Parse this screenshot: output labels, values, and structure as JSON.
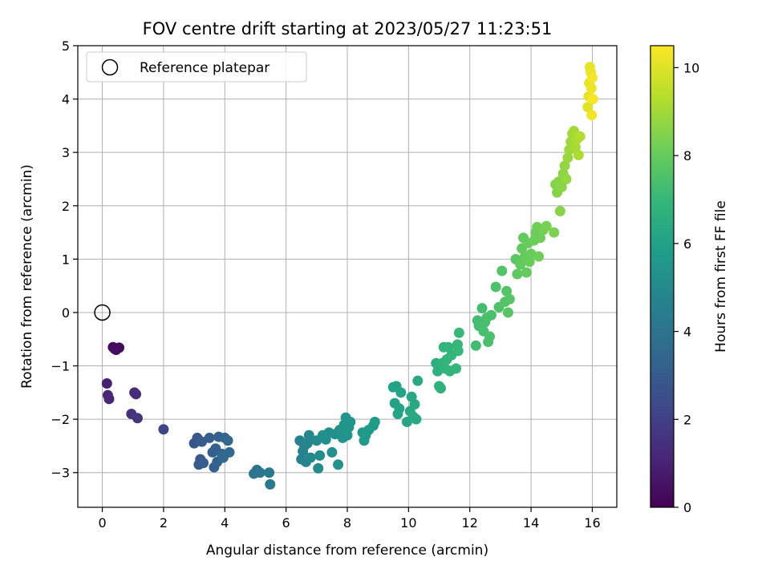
{
  "chart_data": {
    "type": "scatter",
    "title": "FOV centre drift starting at 2023/05/27 11:23:51",
    "xlabel": "Angular distance from reference (arcmin)",
    "ylabel": "Rotation from reference (arcmin)",
    "xlim": [
      -0.8,
      16.8
    ],
    "ylim": [
      -3.65,
      5.0
    ],
    "xticks": [
      0,
      2,
      4,
      6,
      8,
      10,
      12,
      14,
      16
    ],
    "yticks": [
      -3,
      -2,
      -1,
      0,
      1,
      2,
      3,
      4,
      5
    ],
    "grid": true,
    "legend": {
      "placement": "top-left",
      "entries": [
        "Reference platepar"
      ]
    },
    "reference_point": {
      "name": "Reference platepar",
      "x": 0,
      "y": 0
    },
    "colorbar": {
      "label": "Hours from first FF file",
      "colormap": "viridis",
      "min": 0,
      "max": 10.5,
      "ticks": [
        0,
        2,
        4,
        6,
        8,
        10
      ]
    },
    "points": [
      {
        "x": 0.35,
        "y": -0.65,
        "c": 0.2
      },
      {
        "x": 0.45,
        "y": -0.7,
        "c": 0.25
      },
      {
        "x": 0.55,
        "y": -0.66,
        "c": 0.3
      },
      {
        "x": 0.4,
        "y": -0.68,
        "c": 0.35
      },
      {
        "x": 0.15,
        "y": -1.33,
        "c": 1.0
      },
      {
        "x": 0.18,
        "y": -1.55,
        "c": 1.1
      },
      {
        "x": 0.22,
        "y": -1.62,
        "c": 1.15
      },
      {
        "x": 1.05,
        "y": -1.5,
        "c": 1.3
      },
      {
        "x": 1.1,
        "y": -1.53,
        "c": 1.35
      },
      {
        "x": 0.95,
        "y": -1.9,
        "c": 1.5
      },
      {
        "x": 1.15,
        "y": -1.98,
        "c": 1.6
      },
      {
        "x": 2.0,
        "y": -2.19,
        "c": 2.2
      },
      {
        "x": 3.0,
        "y": -2.45,
        "c": 2.8
      },
      {
        "x": 3.1,
        "y": -2.35,
        "c": 2.85
      },
      {
        "x": 3.2,
        "y": -2.75,
        "c": 2.9
      },
      {
        "x": 3.15,
        "y": -2.85,
        "c": 2.95
      },
      {
        "x": 3.3,
        "y": -2.82,
        "c": 3.0
      },
      {
        "x": 3.25,
        "y": -2.42,
        "c": 3.0
      },
      {
        "x": 3.5,
        "y": -2.35,
        "c": 3.1
      },
      {
        "x": 3.6,
        "y": -2.62,
        "c": 3.15
      },
      {
        "x": 3.65,
        "y": -2.9,
        "c": 3.2
      },
      {
        "x": 3.75,
        "y": -2.8,
        "c": 3.25
      },
      {
        "x": 3.8,
        "y": -2.33,
        "c": 3.3
      },
      {
        "x": 3.9,
        "y": -2.65,
        "c": 3.35
      },
      {
        "x": 4.0,
        "y": -2.35,
        "c": 3.4
      },
      {
        "x": 4.1,
        "y": -2.4,
        "c": 3.45
      },
      {
        "x": 4.15,
        "y": -2.62,
        "c": 3.5
      },
      {
        "x": 3.95,
        "y": -2.72,
        "c": 3.5
      },
      {
        "x": 3.7,
        "y": -2.55,
        "c": 3.3
      },
      {
        "x": 4.95,
        "y": -3.02,
        "c": 4.0
      },
      {
        "x": 5.05,
        "y": -2.95,
        "c": 4.05
      },
      {
        "x": 5.15,
        "y": -3.0,
        "c": 4.1
      },
      {
        "x": 5.45,
        "y": -3.0,
        "c": 4.2
      },
      {
        "x": 5.48,
        "y": -3.22,
        "c": 4.25
      },
      {
        "x": 6.45,
        "y": -2.4,
        "c": 4.6
      },
      {
        "x": 6.5,
        "y": -2.75,
        "c": 4.65
      },
      {
        "x": 6.55,
        "y": -2.6,
        "c": 4.7
      },
      {
        "x": 6.6,
        "y": -2.5,
        "c": 4.7
      },
      {
        "x": 6.65,
        "y": -2.8,
        "c": 4.75
      },
      {
        "x": 6.7,
        "y": -2.45,
        "c": 4.8
      },
      {
        "x": 6.75,
        "y": -2.3,
        "c": 4.85
      },
      {
        "x": 6.8,
        "y": -2.72,
        "c": 4.9
      },
      {
        "x": 7.0,
        "y": -2.4,
        "c": 5.0
      },
      {
        "x": 7.05,
        "y": -2.92,
        "c": 5.05
      },
      {
        "x": 7.1,
        "y": -2.68,
        "c": 5.1
      },
      {
        "x": 7.2,
        "y": -2.3,
        "c": 5.15
      },
      {
        "x": 7.3,
        "y": -2.38,
        "c": 5.2
      },
      {
        "x": 7.4,
        "y": -2.25,
        "c": 5.2
      },
      {
        "x": 7.5,
        "y": -2.62,
        "c": 5.25
      },
      {
        "x": 7.6,
        "y": -2.28,
        "c": 5.3
      },
      {
        "x": 7.7,
        "y": -2.85,
        "c": 5.35
      },
      {
        "x": 7.75,
        "y": -2.2,
        "c": 5.35
      },
      {
        "x": 7.85,
        "y": -2.35,
        "c": 5.4
      },
      {
        "x": 7.9,
        "y": -2.1,
        "c": 5.4
      },
      {
        "x": 7.95,
        "y": -1.97,
        "c": 5.45
      },
      {
        "x": 8.0,
        "y": -2.3,
        "c": 5.45
      },
      {
        "x": 8.05,
        "y": -2.15,
        "c": 5.5
      },
      {
        "x": 8.1,
        "y": -2.05,
        "c": 5.5
      },
      {
        "x": 8.5,
        "y": -2.25,
        "c": 5.6
      },
      {
        "x": 8.55,
        "y": -2.4,
        "c": 5.65
      },
      {
        "x": 8.6,
        "y": -2.3,
        "c": 5.7
      },
      {
        "x": 8.7,
        "y": -2.2,
        "c": 5.7
      },
      {
        "x": 8.85,
        "y": -2.12,
        "c": 5.8
      },
      {
        "x": 8.9,
        "y": -2.05,
        "c": 5.8
      },
      {
        "x": 9.5,
        "y": -1.4,
        "c": 6.0
      },
      {
        "x": 9.55,
        "y": -1.7,
        "c": 6.05
      },
      {
        "x": 9.6,
        "y": -1.38,
        "c": 6.05
      },
      {
        "x": 9.65,
        "y": -1.9,
        "c": 6.1
      },
      {
        "x": 9.7,
        "y": -1.8,
        "c": 6.1
      },
      {
        "x": 9.75,
        "y": -1.5,
        "c": 6.15
      },
      {
        "x": 9.95,
        "y": -2.05,
        "c": 6.2
      },
      {
        "x": 10.05,
        "y": -1.85,
        "c": 6.25
      },
      {
        "x": 10.1,
        "y": -1.58,
        "c": 6.25
      },
      {
        "x": 10.15,
        "y": -1.95,
        "c": 6.3
      },
      {
        "x": 10.25,
        "y": -2.0,
        "c": 6.3
      },
      {
        "x": 10.3,
        "y": -1.28,
        "c": 6.35
      },
      {
        "x": 10.2,
        "y": -1.72,
        "c": 6.3
      },
      {
        "x": 10.9,
        "y": -0.95,
        "c": 6.6
      },
      {
        "x": 10.95,
        "y": -1.1,
        "c": 6.65
      },
      {
        "x": 11.0,
        "y": -1.38,
        "c": 6.7
      },
      {
        "x": 11.05,
        "y": -1.42,
        "c": 6.7
      },
      {
        "x": 11.1,
        "y": -0.95,
        "c": 6.75
      },
      {
        "x": 11.15,
        "y": -0.65,
        "c": 6.8
      },
      {
        "x": 11.2,
        "y": -1.05,
        "c": 6.8
      },
      {
        "x": 11.25,
        "y": -0.88,
        "c": 6.85
      },
      {
        "x": 11.3,
        "y": -0.65,
        "c": 6.85
      },
      {
        "x": 11.35,
        "y": -1.1,
        "c": 6.9
      },
      {
        "x": 11.4,
        "y": -0.8,
        "c": 6.9
      },
      {
        "x": 11.55,
        "y": -1.05,
        "c": 6.95
      },
      {
        "x": 11.6,
        "y": -0.6,
        "c": 7.0
      },
      {
        "x": 11.62,
        "y": -0.72,
        "c": 7.0
      },
      {
        "x": 11.65,
        "y": -0.38,
        "c": 7.05
      },
      {
        "x": 12.2,
        "y": -0.62,
        "c": 7.2
      },
      {
        "x": 12.25,
        "y": -0.15,
        "c": 7.25
      },
      {
        "x": 12.3,
        "y": -0.25,
        "c": 7.25
      },
      {
        "x": 12.35,
        "y": -0.2,
        "c": 7.3
      },
      {
        "x": 12.4,
        "y": 0.08,
        "c": 7.3
      },
      {
        "x": 12.45,
        "y": -0.35,
        "c": 7.35
      },
      {
        "x": 12.5,
        "y": -0.18,
        "c": 7.35
      },
      {
        "x": 12.55,
        "y": -0.1,
        "c": 7.4
      },
      {
        "x": 12.6,
        "y": -0.55,
        "c": 7.4
      },
      {
        "x": 12.65,
        "y": -0.45,
        "c": 7.45
      },
      {
        "x": 12.7,
        "y": -0.05,
        "c": 7.45
      },
      {
        "x": 12.85,
        "y": 0.48,
        "c": 7.5
      },
      {
        "x": 12.95,
        "y": 0.1,
        "c": 7.55
      },
      {
        "x": 13.05,
        "y": 0.78,
        "c": 7.6
      },
      {
        "x": 13.15,
        "y": 0.2,
        "c": 7.65
      },
      {
        "x": 13.2,
        "y": 0.4,
        "c": 7.65
      },
      {
        "x": 13.25,
        "y": 0.0,
        "c": 7.7
      },
      {
        "x": 13.3,
        "y": 0.25,
        "c": 7.7
      },
      {
        "x": 13.5,
        "y": 1.0,
        "c": 7.8
      },
      {
        "x": 13.55,
        "y": 0.72,
        "c": 7.85
      },
      {
        "x": 13.65,
        "y": 0.9,
        "c": 7.9
      },
      {
        "x": 13.7,
        "y": 1.2,
        "c": 7.9
      },
      {
        "x": 13.75,
        "y": 1.4,
        "c": 7.95
      },
      {
        "x": 13.8,
        "y": 1.05,
        "c": 7.95
      },
      {
        "x": 13.85,
        "y": 0.75,
        "c": 8.0
      },
      {
        "x": 13.9,
        "y": 1.3,
        "c": 8.0
      },
      {
        "x": 13.95,
        "y": 0.95,
        "c": 8.05
      },
      {
        "x": 14.0,
        "y": 1.1,
        "c": 8.05
      },
      {
        "x": 14.1,
        "y": 1.35,
        "c": 8.1
      },
      {
        "x": 14.15,
        "y": 1.5,
        "c": 8.1
      },
      {
        "x": 14.2,
        "y": 1.6,
        "c": 8.15
      },
      {
        "x": 14.25,
        "y": 1.05,
        "c": 8.15
      },
      {
        "x": 14.3,
        "y": 1.4,
        "c": 8.2
      },
      {
        "x": 14.4,
        "y": 1.55,
        "c": 8.25
      },
      {
        "x": 14.5,
        "y": 1.62,
        "c": 8.3
      },
      {
        "x": 14.75,
        "y": 1.5,
        "c": 8.4
      },
      {
        "x": 14.8,
        "y": 2.4,
        "c": 8.5
      },
      {
        "x": 14.85,
        "y": 2.25,
        "c": 8.55
      },
      {
        "x": 14.9,
        "y": 2.45,
        "c": 8.6
      },
      {
        "x": 14.95,
        "y": 1.9,
        "c": 8.6
      },
      {
        "x": 15.0,
        "y": 2.35,
        "c": 8.65
      },
      {
        "x": 15.05,
        "y": 2.6,
        "c": 8.7
      },
      {
        "x": 15.1,
        "y": 2.75,
        "c": 8.75
      },
      {
        "x": 15.15,
        "y": 2.5,
        "c": 8.8
      },
      {
        "x": 15.2,
        "y": 2.9,
        "c": 8.85
      },
      {
        "x": 15.25,
        "y": 3.05,
        "c": 8.9
      },
      {
        "x": 15.3,
        "y": 3.2,
        "c": 8.95
      },
      {
        "x": 15.35,
        "y": 3.35,
        "c": 9.0
      },
      {
        "x": 15.4,
        "y": 3.4,
        "c": 9.05
      },
      {
        "x": 15.45,
        "y": 3.1,
        "c": 9.1
      },
      {
        "x": 15.5,
        "y": 3.25,
        "c": 9.15
      },
      {
        "x": 15.55,
        "y": 2.95,
        "c": 9.2
      },
      {
        "x": 15.6,
        "y": 3.3,
        "c": 9.25
      },
      {
        "x": 15.85,
        "y": 3.85,
        "c": 10.0
      },
      {
        "x": 15.88,
        "y": 4.05,
        "c": 10.05
      },
      {
        "x": 15.9,
        "y": 4.3,
        "c": 10.1
      },
      {
        "x": 15.92,
        "y": 4.6,
        "c": 10.15
      },
      {
        "x": 15.95,
        "y": 4.5,
        "c": 10.2
      },
      {
        "x": 15.97,
        "y": 4.2,
        "c": 10.25
      },
      {
        "x": 15.98,
        "y": 3.7,
        "c": 10.3
      },
      {
        "x": 16.0,
        "y": 4.4,
        "c": 10.35
      },
      {
        "x": 16.02,
        "y": 4.0,
        "c": 10.4
      }
    ]
  }
}
